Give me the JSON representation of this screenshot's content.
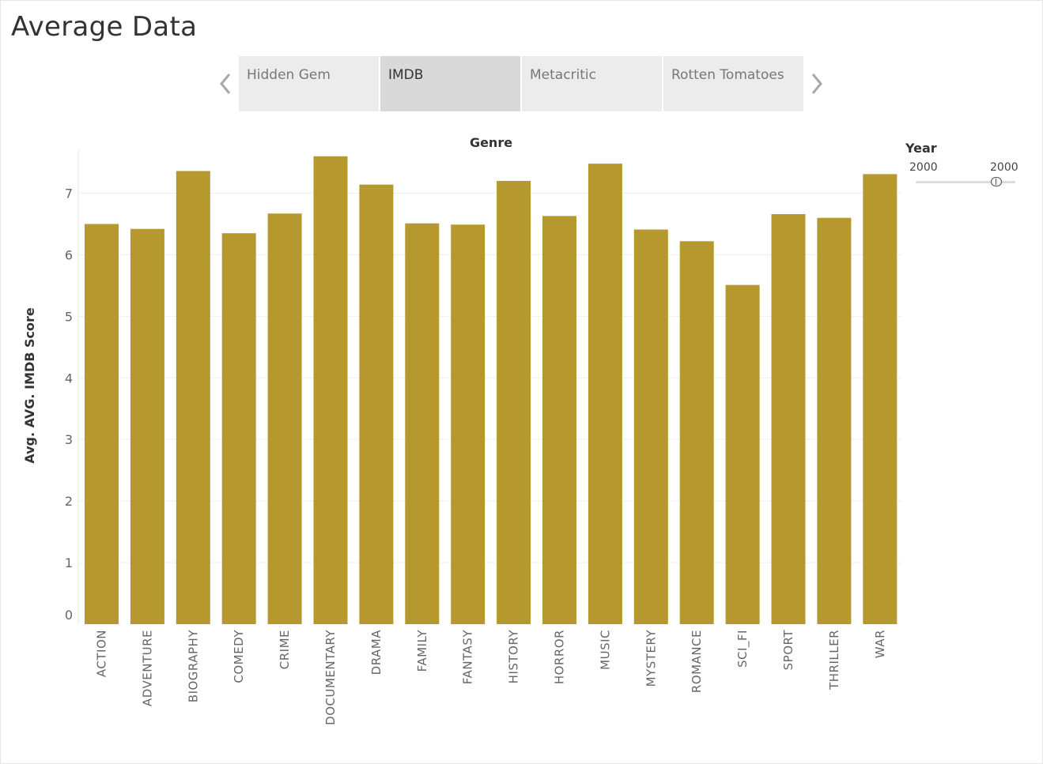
{
  "title": "Average Data",
  "tabs": [
    {
      "label": "Hidden Gem",
      "selected": false
    },
    {
      "label": "IMDB",
      "selected": true
    },
    {
      "label": "Metacritic",
      "selected": false
    },
    {
      "label": "Rotten Tomatoes",
      "selected": false
    }
  ],
  "nav": {
    "prev_icon": "chevron-left-icon",
    "next_icon": "chevron-right-icon"
  },
  "filter": {
    "title": "Year",
    "min": "2000",
    "max": "2000",
    "value_fraction": 0.8
  },
  "colors": {
    "bar": "#b5992e",
    "grid": "#efefef",
    "selected_tab": "#d9d9d9",
    "tab": "#ececec"
  },
  "chart_data": {
    "type": "bar",
    "title": "Genre",
    "xlabel": "",
    "ylabel": "Avg. AVG. IMDB Score",
    "ylim": [
      0,
      7.7
    ],
    "yticks": [
      0,
      1,
      2,
      3,
      4,
      5,
      6,
      7
    ],
    "grid": true,
    "categories": [
      "ACTION",
      "ADVENTURE",
      "BIOGRAPHY",
      "COMEDY",
      "CRIME",
      "DOCUMENTARY",
      "DRAMA",
      "FAMILY",
      "FANTASY",
      "HISTORY",
      "HORROR",
      "MUSIC",
      "MYSTERY",
      "ROMANCE",
      "SCI_FI",
      "SPORT",
      "THRILLER",
      "WAR"
    ],
    "values": [
      6.5,
      6.42,
      7.36,
      6.35,
      6.67,
      7.6,
      7.14,
      6.51,
      6.49,
      7.2,
      6.63,
      7.48,
      6.41,
      6.22,
      5.51,
      6.66,
      6.6,
      7.31
    ]
  }
}
